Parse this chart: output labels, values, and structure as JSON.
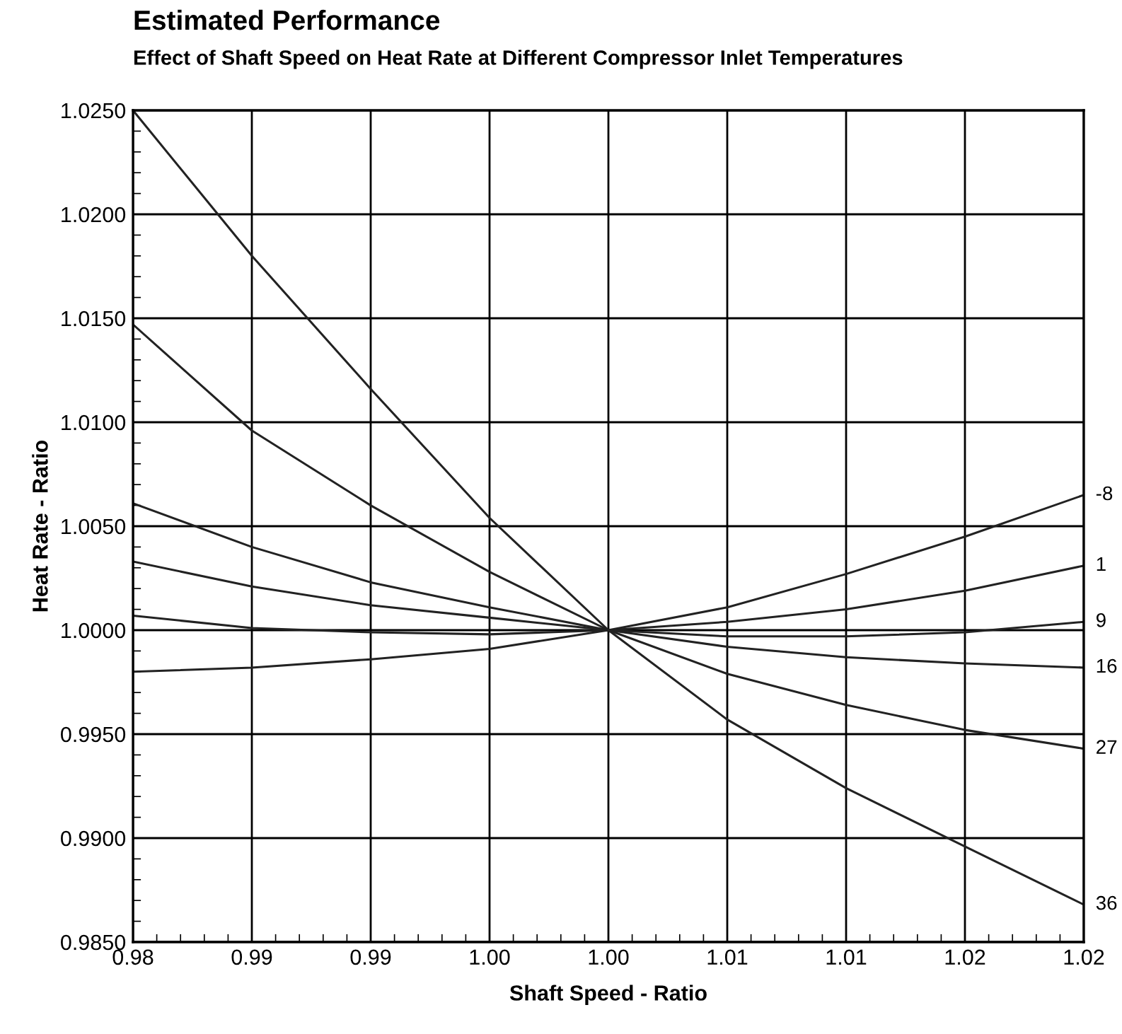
{
  "chart_data": {
    "type": "line",
    "title": "Estimated Performance",
    "subtitle": "Effect of Shaft Speed on Heat Rate at Different Compressor Inlet Temperatures",
    "xlabel": "Shaft Speed - Ratio",
    "ylabel": "Heat Rate - Ratio",
    "x": [
      0.98,
      0.985,
      0.99,
      0.995,
      1.0,
      1.005,
      1.01,
      1.015,
      1.02
    ],
    "series": [
      {
        "name": "-8",
        "color": "#222222",
        "values": [
          0.998,
          0.9982,
          0.9986,
          0.9991,
          1.0,
          1.0011,
          1.0027,
          1.0045,
          1.0065
        ]
      },
      {
        "name": "1",
        "color": "#222222",
        "values": [
          1.0007,
          1.0001,
          0.9999,
          0.9998,
          1.0,
          1.0004,
          1.001,
          1.0019,
          1.0031
        ]
      },
      {
        "name": "9",
        "color": "#222222",
        "values": [
          1.0033,
          1.0021,
          1.0012,
          1.0006,
          1.0,
          0.9997,
          0.9997,
          0.9999,
          1.0004
        ]
      },
      {
        "name": "16",
        "color": "#222222",
        "values": [
          1.0061,
          1.004,
          1.0023,
          1.0011,
          1.0,
          0.9992,
          0.9987,
          0.9984,
          0.9982
        ]
      },
      {
        "name": "27",
        "color": "#222222",
        "values": [
          1.0147,
          1.0096,
          1.006,
          1.0028,
          1.0,
          0.9979,
          0.9964,
          0.9952,
          0.9943
        ]
      },
      {
        "name": "36",
        "color": "#222222",
        "values": [
          1.025,
          1.018,
          1.0116,
          1.0054,
          1.0,
          0.9957,
          0.9924,
          0.9896,
          0.9868
        ]
      }
    ],
    "xlim": [
      0.98,
      1.02
    ],
    "xticks": [
      {
        "value": 0.98,
        "label": "0.98"
      },
      {
        "value": 0.985,
        "label": "0.99"
      },
      {
        "value": 0.99,
        "label": "0.99"
      },
      {
        "value": 0.995,
        "label": "1.00"
      },
      {
        "value": 1.0,
        "label": "1.00"
      },
      {
        "value": 1.005,
        "label": "1.01"
      },
      {
        "value": 1.01,
        "label": "1.01"
      },
      {
        "value": 1.015,
        "label": "1.02"
      },
      {
        "value": 1.02,
        "label": "1.02"
      }
    ],
    "ylim": [
      0.985,
      1.025
    ],
    "yticks": [
      {
        "value": 0.985,
        "label": "0.9850"
      },
      {
        "value": 0.99,
        "label": "0.9900"
      },
      {
        "value": 0.995,
        "label": "0.9950"
      },
      {
        "value": 1.0,
        "label": "1.0000"
      },
      {
        "value": 1.005,
        "label": "1.0050"
      },
      {
        "value": 1.01,
        "label": "1.0100"
      },
      {
        "value": 1.015,
        "label": "1.0150"
      },
      {
        "value": 1.02,
        "label": "1.0200"
      },
      {
        "value": 1.025,
        "label": "1.0250"
      }
    ],
    "grid": true,
    "marker": "none",
    "line_style": "solid",
    "legend": false
  }
}
